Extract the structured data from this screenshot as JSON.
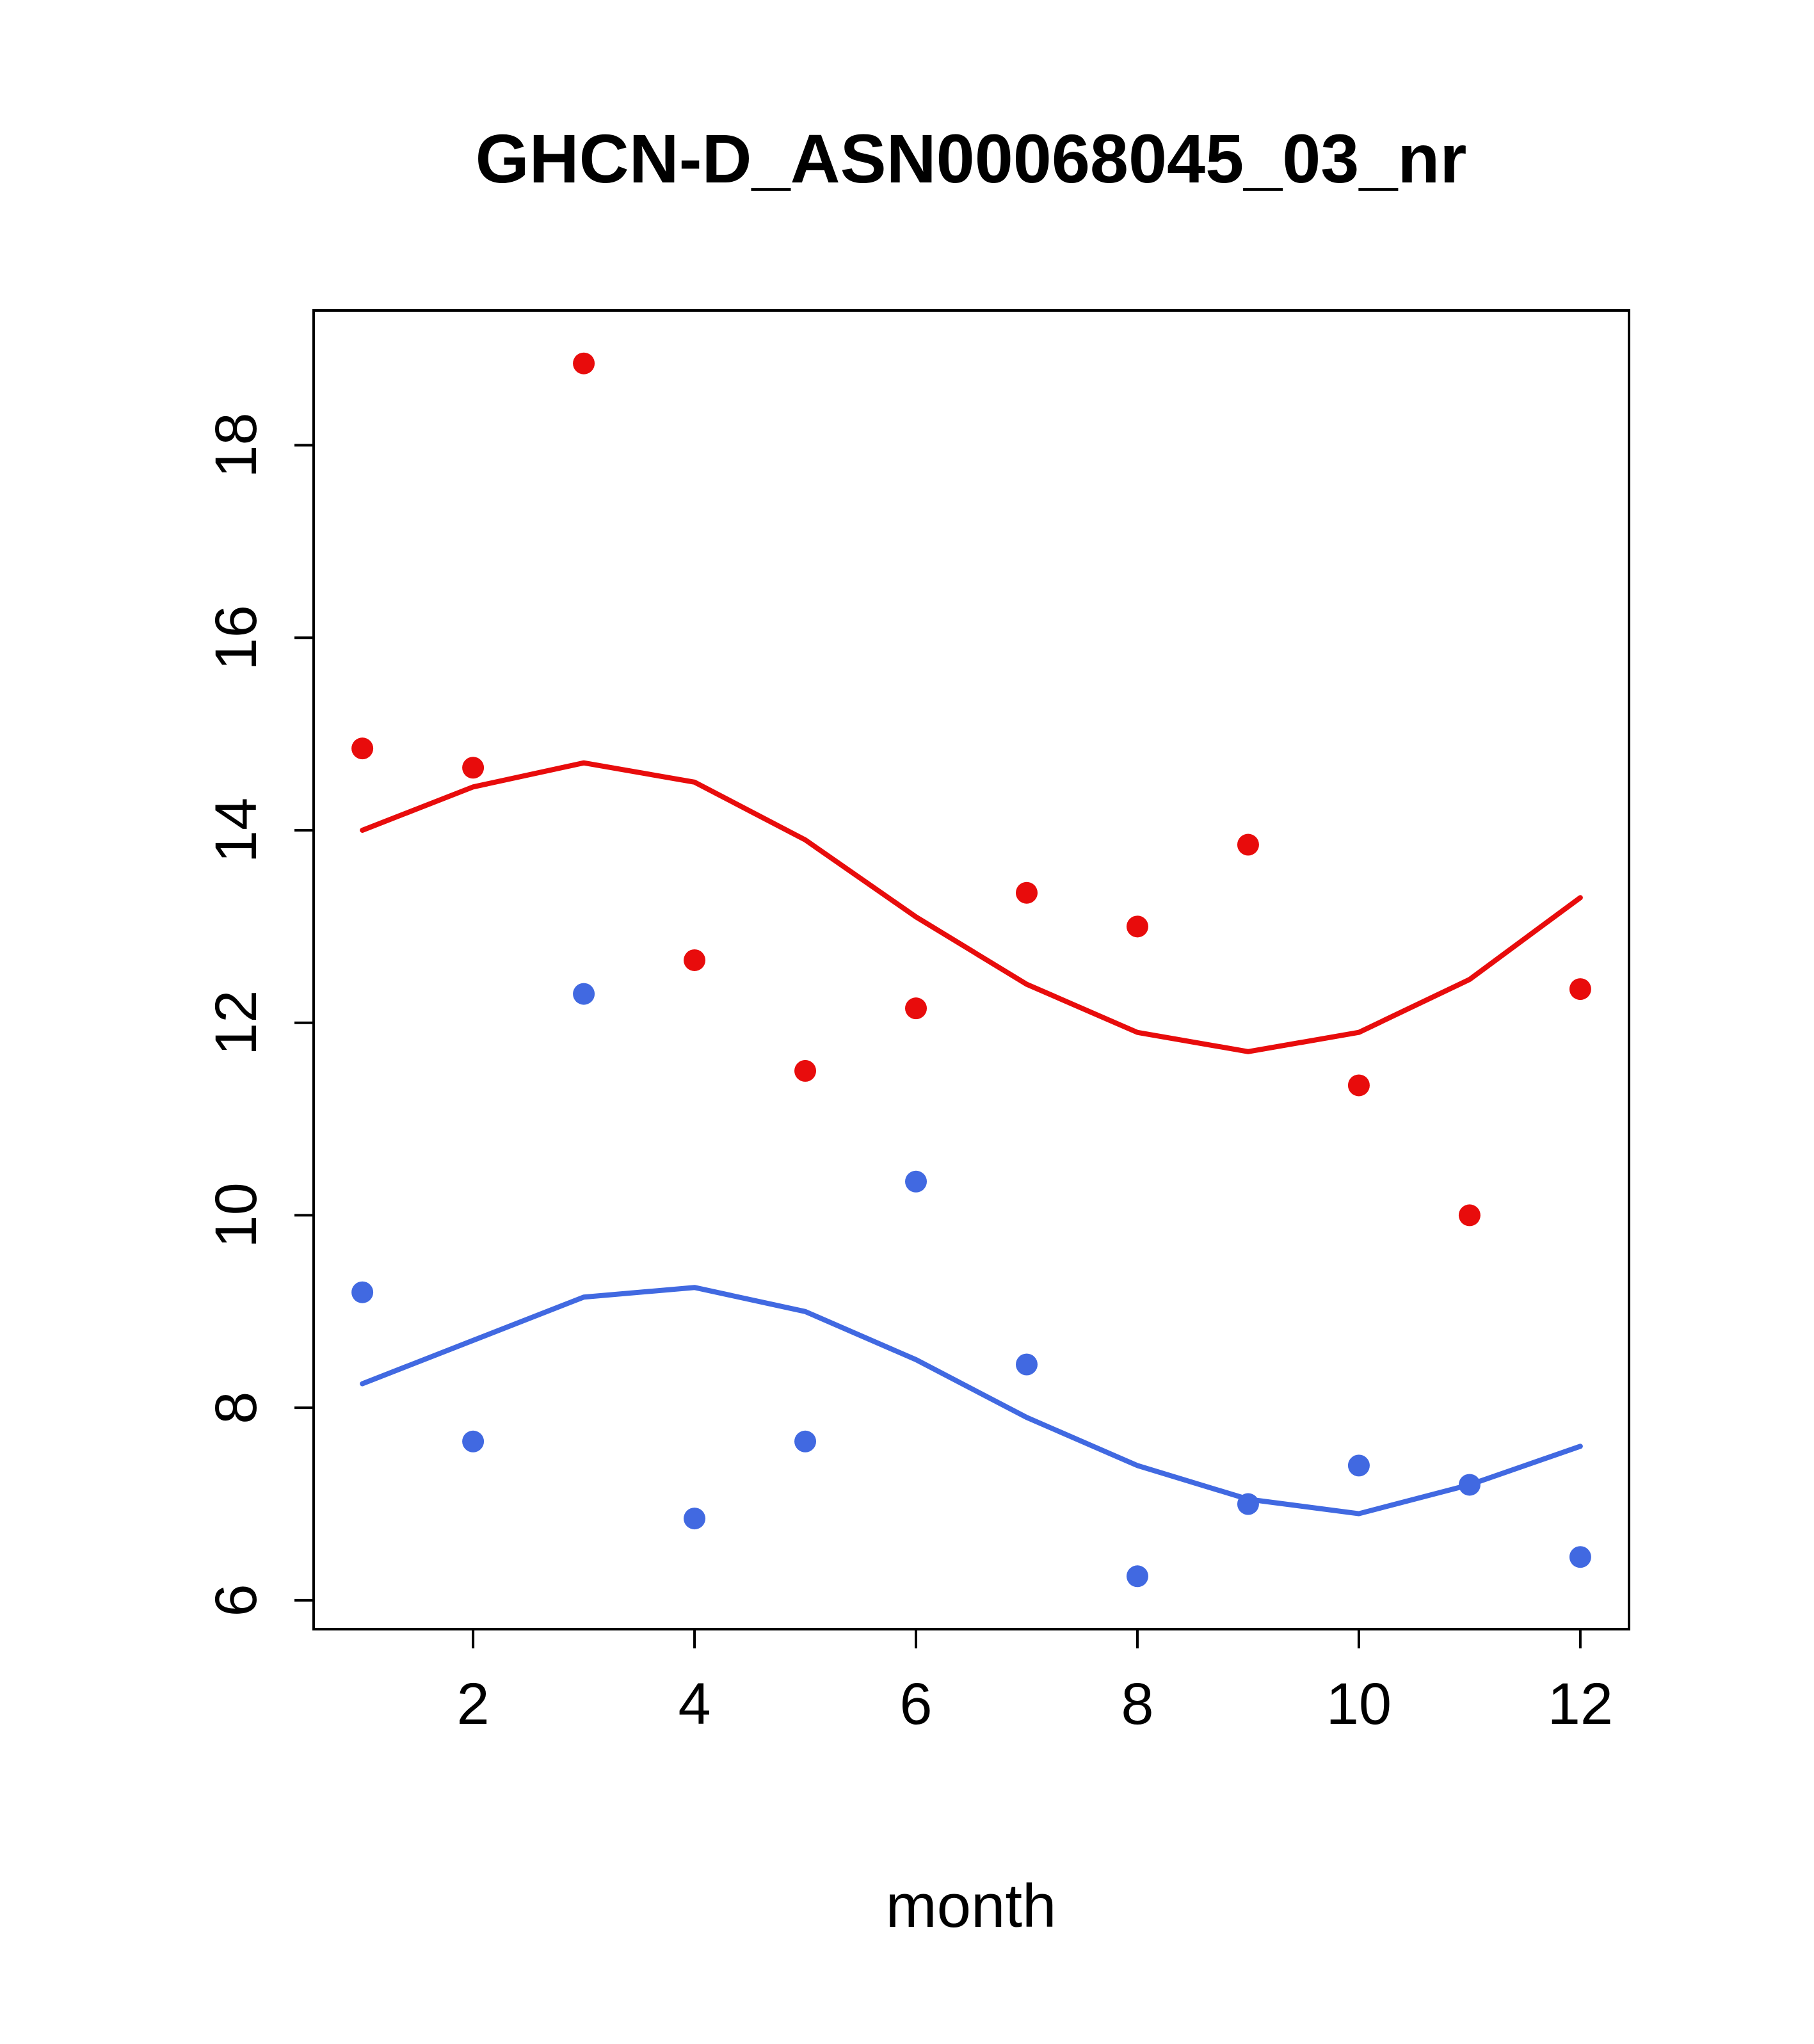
{
  "title": "GHCN-D_ASN00068045_03_nr",
  "xlabel": "month",
  "colors": {
    "series_red": "#e80c0c",
    "series_blue": "#4169e1",
    "axis": "#000000",
    "background": "#ffffff"
  },
  "chart_data": {
    "type": "scatter",
    "title": "GHCN-D_ASN00068045_03_nr",
    "xlabel": "month",
    "ylabel": "",
    "x": [
      1,
      2,
      3,
      4,
      5,
      6,
      7,
      8,
      9,
      10,
      11,
      12
    ],
    "series": [
      {
        "name": "red-points",
        "kind": "scatter",
        "color": "#e80c0c",
        "values": [
          14.85,
          14.65,
          18.85,
          12.65,
          11.5,
          12.15,
          13.35,
          13.0,
          13.85,
          11.35,
          10.0,
          12.35
        ]
      },
      {
        "name": "red-smooth-line",
        "kind": "line",
        "color": "#e80c0c",
        "values": [
          14.0,
          14.45,
          14.7,
          14.5,
          13.9,
          13.1,
          12.4,
          11.9,
          11.7,
          11.9,
          12.45,
          13.3
        ]
      },
      {
        "name": "blue-points",
        "kind": "scatter",
        "color": "#4169e1",
        "values": [
          9.2,
          7.65,
          12.3,
          6.85,
          7.65,
          10.35,
          8.45,
          6.25,
          7.0,
          7.4,
          7.2,
          6.45
        ]
      },
      {
        "name": "blue-smooth-line",
        "kind": "line",
        "color": "#4169e1",
        "values": [
          8.25,
          8.7,
          9.15,
          9.25,
          9.0,
          8.5,
          7.9,
          7.4,
          7.05,
          6.9,
          7.2,
          7.6
        ]
      }
    ],
    "xticks": [
      "2",
      "4",
      "6",
      "8",
      "10",
      "12"
    ],
    "xtick_values": [
      2,
      4,
      6,
      8,
      10,
      12
    ],
    "yticks": [
      "6",
      "8",
      "10",
      "12",
      "14",
      "16",
      "18"
    ],
    "ytick_values": [
      6,
      8,
      10,
      12,
      14,
      16,
      18
    ],
    "xlim": [
      0.56,
      12.44
    ],
    "ylim": [
      5.7,
      19.4
    ],
    "grid": false,
    "legend": "none"
  }
}
